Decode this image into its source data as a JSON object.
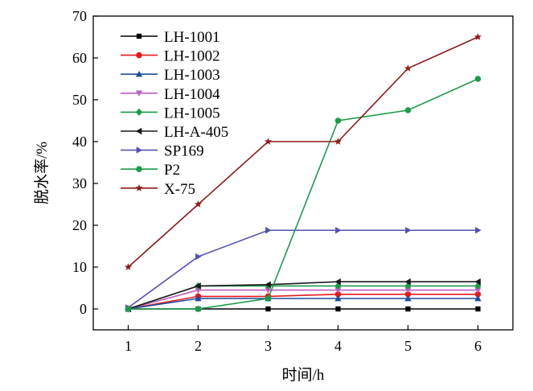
{
  "chart_data": {
    "type": "line",
    "xlabel": "时间/h",
    "ylabel": "脱水率/%",
    "x": [
      1,
      2,
      3,
      4,
      5,
      6
    ],
    "xlim": [
      0.5,
      6.5
    ],
    "ylim": [
      -5,
      70
    ],
    "xticks": [
      "1",
      "2",
      "3",
      "4",
      "5",
      "6"
    ],
    "yticks": [
      "0",
      "10",
      "20",
      "30",
      "40",
      "50",
      "60",
      "70"
    ],
    "grid": false,
    "legend_position": "top-left",
    "series": [
      {
        "name": "LH-1001",
        "color": "#000000",
        "marker": "square",
        "values": [
          0,
          0,
          0,
          0,
          0,
          0
        ]
      },
      {
        "name": "LH-1002",
        "color": "#e41a1c",
        "marker": "circle",
        "values": [
          0,
          3,
          3,
          3.5,
          3.5,
          3.5
        ]
      },
      {
        "name": "LH-1003",
        "color": "#1f4e9e",
        "marker": "triangle-up",
        "values": [
          0,
          2.5,
          2.5,
          2.5,
          2.5,
          2.5
        ]
      },
      {
        "name": "LH-1004",
        "color": "#c060c0",
        "marker": "triangle-down",
        "values": [
          0,
          4.5,
          4.5,
          4.5,
          4.5,
          4.5
        ]
      },
      {
        "name": "LH-1005",
        "color": "#1e9a4a",
        "marker": "diamond",
        "values": [
          0,
          5.5,
          5.5,
          5.5,
          5.5,
          5.5
        ]
      },
      {
        "name": "LH-A-405",
        "color": "#1a1a1a",
        "marker": "triangle-left",
        "values": [
          0,
          5.5,
          5.8,
          6.5,
          6.5,
          6.5
        ]
      },
      {
        "name": "SP169",
        "color": "#5252b0",
        "marker": "triangle-right",
        "values": [
          0.3,
          12.5,
          18.8,
          18.8,
          18.8,
          18.8
        ]
      },
      {
        "name": "P2",
        "color": "#1e9a4a",
        "marker": "circle",
        "values": [
          0,
          0,
          2.5,
          45,
          47.5,
          55
        ]
      },
      {
        "name": "X-75",
        "color": "#8b1a1a",
        "marker": "star",
        "values": [
          10,
          25,
          40,
          40,
          57.5,
          65
        ]
      }
    ]
  }
}
